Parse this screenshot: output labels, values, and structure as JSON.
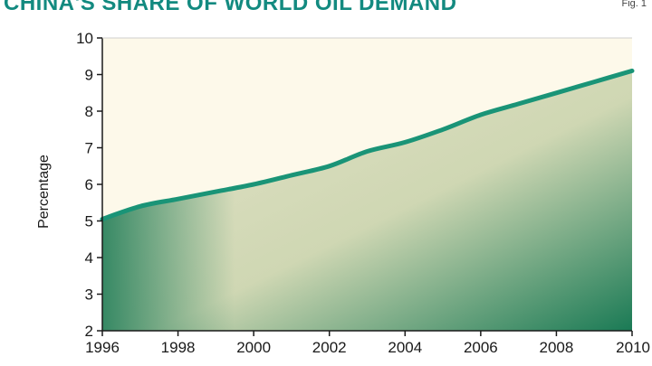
{
  "header": {
    "title": "CHINA'S SHARE OF WORLD OIL DEMAND",
    "fig_label": "Fig. 1"
  },
  "colors": {
    "title": "#138a80",
    "line": "#1a9477",
    "plot_background": "#fdf9ea",
    "fill_light": "#e4e3c8",
    "fill_dark": "#1a7a55"
  },
  "chart_data": {
    "type": "area",
    "title": "CHINA'S SHARE OF WORLD OIL DEMAND",
    "ylabel": "Percentage",
    "xlabel": "",
    "xlim": [
      1996,
      2010
    ],
    "ylim": [
      2,
      10
    ],
    "x_ticks": [
      "1996",
      "1998",
      "2000",
      "2002",
      "2004",
      "2006",
      "2008",
      "2010"
    ],
    "y_ticks": [
      "2",
      "3",
      "4",
      "5",
      "6",
      "7",
      "8",
      "9",
      "10"
    ],
    "grid": false,
    "series": [
      {
        "x": [
          1996,
          1997,
          1998,
          1999,
          2000,
          2001,
          2002,
          2003,
          2004,
          2005,
          2006,
          2007,
          2008,
          2009,
          2010
        ],
        "values": [
          5.05,
          5.4,
          5.6,
          5.8,
          6.0,
          6.25,
          6.5,
          6.9,
          7.15,
          7.5,
          7.9,
          8.2,
          8.5,
          8.8,
          9.1
        ]
      }
    ]
  }
}
